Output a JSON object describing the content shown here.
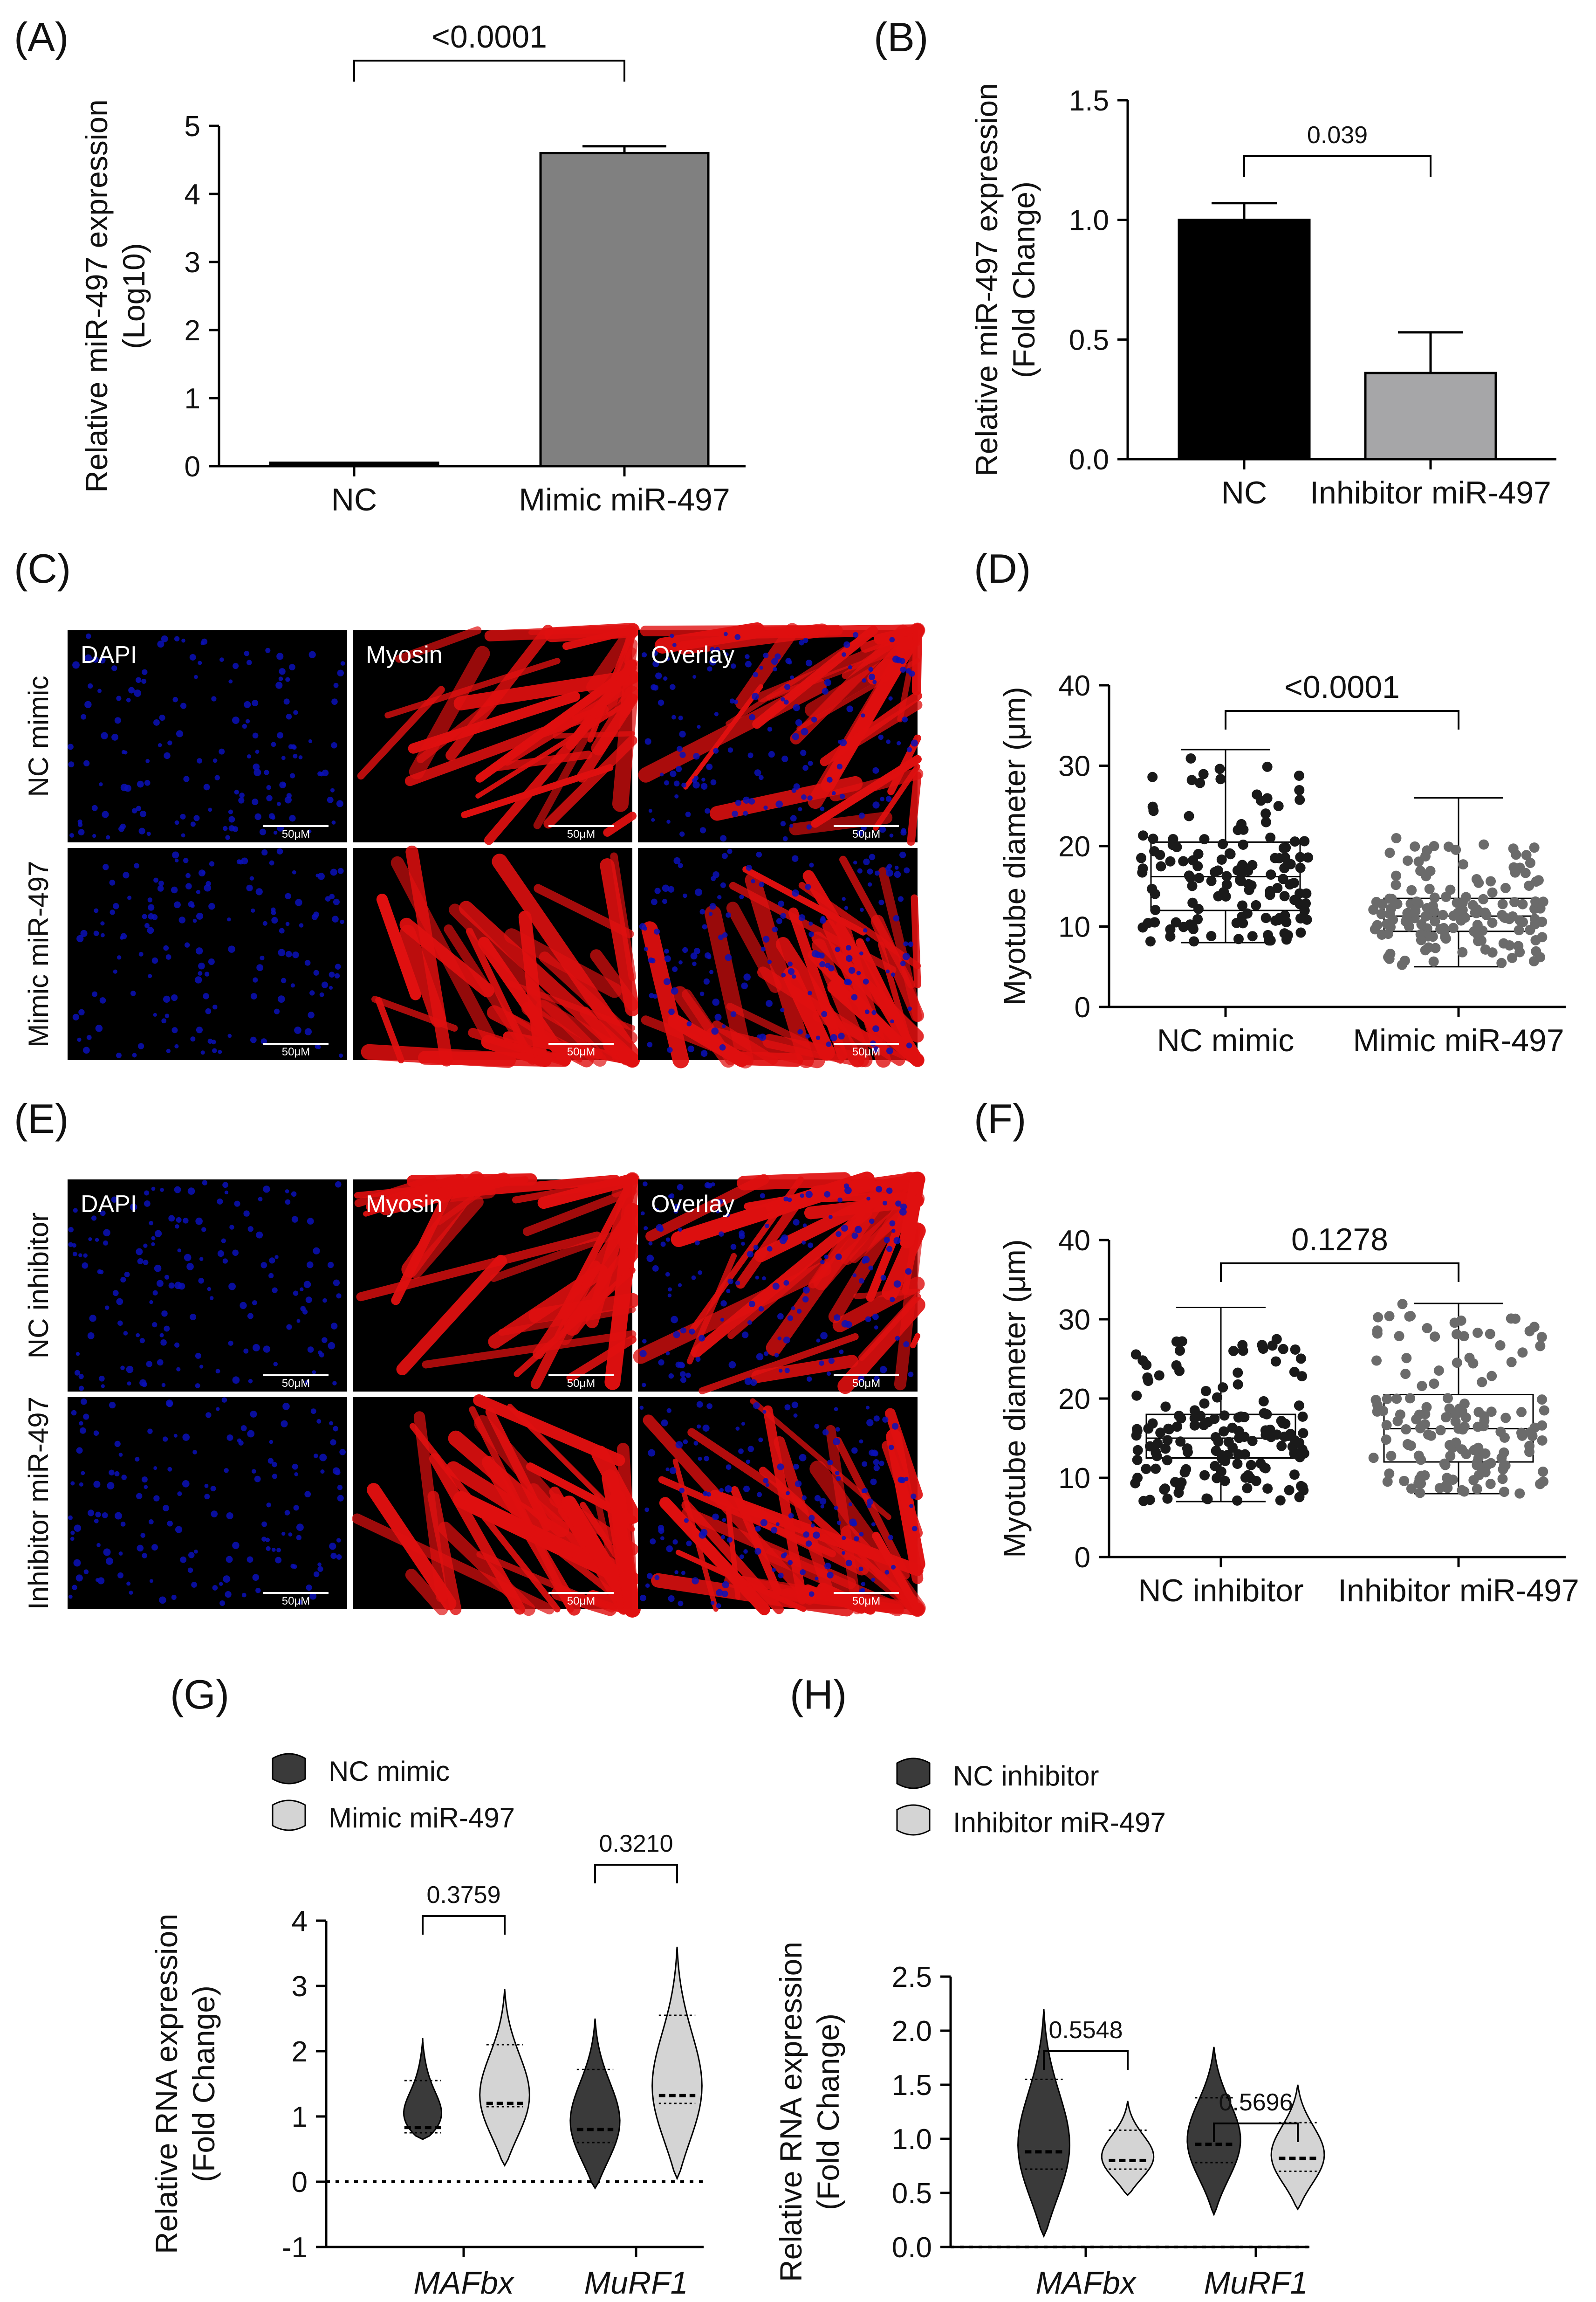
{
  "panel_labels": {
    "A": "(A)",
    "B": "(B)",
    "C": "(C)",
    "D": "(D)",
    "E": "(E)",
    "F": "(F)",
    "G": "(G)",
    "H": "(H)"
  },
  "colors": {
    "nc": "#000000",
    "nc_gray": "#222222",
    "mimic": "#808080",
    "inhibitor": "#a6a6a8",
    "dots_dark": "#1a1a1a",
    "dots_gray": "#6b6b6b",
    "violin_dark": "#3a3a3a",
    "violin_light": "#d4d4d4",
    "micro_blue": "#0a10b8",
    "micro_red": "#e01010"
  },
  "micrographs": {
    "C": {
      "rows": [
        {
          "label": "NC mimic"
        },
        {
          "label": "Mimic miR-497"
        }
      ],
      "columns": [
        {
          "label": "DAPI",
          "stain": "dapi"
        },
        {
          "label": "Myosin",
          "stain": "myosin"
        },
        {
          "label": "Overlay",
          "stain": "overlay"
        }
      ],
      "scale_label": "50μM"
    },
    "E": {
      "rows": [
        {
          "label": "NC inhibitor"
        },
        {
          "label": "Inhibitor miR-497"
        }
      ],
      "columns": [
        {
          "label": "DAPI",
          "stain": "dapi"
        },
        {
          "label": "Myosin",
          "stain": "myosin"
        },
        {
          "label": "Overlay",
          "stain": "overlay"
        }
      ],
      "scale_label": "50μM"
    }
  },
  "chart_data": [
    {
      "id": "A",
      "type": "bar",
      "categories": [
        "NC",
        "Mimic miR-497"
      ],
      "values": [
        0.05,
        4.6
      ],
      "errors": [
        0,
        0.1
      ],
      "ylabel": "Relative miR-497 expression\n(Log10)",
      "ylim": [
        0,
        5
      ],
      "yticks": [
        "0",
        "1",
        "2",
        "3",
        "4",
        "5"
      ],
      "ytick_values": [
        0,
        1,
        2,
        3,
        4,
        5
      ],
      "comparison": {
        "from": 0,
        "to": 1,
        "label": "<0.0001"
      }
    },
    {
      "id": "B",
      "type": "bar",
      "categories": [
        "NC",
        "Inhibitor miR-497"
      ],
      "values": [
        1.0,
        0.36
      ],
      "errors": [
        0.07,
        0.17
      ],
      "ylabel": "Relative miR-497 expression\n(Fold Change)",
      "ylim": [
        0,
        1.5
      ],
      "yticks": [
        "0.0",
        "0.5",
        "1.0",
        "1.5"
      ],
      "ytick_values": [
        0,
        0.5,
        1.0,
        1.5
      ],
      "comparison": {
        "from": 0,
        "to": 1,
        "label": "0.039"
      }
    },
    {
      "id": "D",
      "type": "box",
      "categories": [
        "NC mimic",
        "Mimic miR-497"
      ],
      "boxes": [
        {
          "min": 8,
          "q1": 12,
          "median": 16.2,
          "q3": 20.5,
          "max": 32,
          "n": 140,
          "spread_hi": 32,
          "spread_lo": 8
        },
        {
          "min": 5,
          "q1": 9.4,
          "median": 11.3,
          "q3": 13.5,
          "max": 26,
          "n": 150,
          "spread_hi": 21,
          "spread_lo": 5
        }
      ],
      "ylabel": "Myotube diameter (μm)",
      "ylim": [
        0,
        40
      ],
      "yticks": [
        "0",
        "10",
        "20",
        "30",
        "40"
      ],
      "ytick_values": [
        0,
        10,
        20,
        30,
        40
      ],
      "comparison": {
        "from": 0,
        "to": 1,
        "label": "<0.0001"
      }
    },
    {
      "id": "F",
      "type": "box",
      "categories": [
        "NC inhibitor",
        "Inhibitor miR-497"
      ],
      "boxes": [
        {
          "min": 7,
          "q1": 12.5,
          "median": 15,
          "q3": 18,
          "max": 31.5,
          "n": 150,
          "spread_hi": 27.5,
          "spread_lo": 7
        },
        {
          "min": 8,
          "q1": 12,
          "median": 16.2,
          "q3": 20.5,
          "max": 32,
          "n": 150,
          "spread_hi": 32,
          "spread_lo": 8
        }
      ],
      "ylabel": "Myotube diameter (μm)",
      "ylim": [
        0,
        40
      ],
      "yticks": [
        "0",
        "10",
        "20",
        "30",
        "40"
      ],
      "ytick_values": [
        0,
        10,
        20,
        30,
        40
      ],
      "comparison": {
        "from": 0,
        "to": 1,
        "label": "0.1278"
      }
    },
    {
      "id": "G",
      "type": "violin",
      "categories": [
        "MAFbx",
        "MuRF1"
      ],
      "legend": [
        "NC mimic",
        "Mimic miR-497"
      ],
      "series": [
        {
          "name": "NC mimic",
          "violins": [
            {
              "min": 0.65,
              "max": 2.2,
              "median": 0.83,
              "q1": 0.75,
              "q3": 1.55,
              "mode": 0.85
            },
            {
              "min": -0.1,
              "max": 2.5,
              "median": 0.8,
              "q1": 0.6,
              "q3": 1.72,
              "mode": 0.8
            }
          ]
        },
        {
          "name": "Mimic miR-497",
          "violins": [
            {
              "min": 0.25,
              "max": 2.95,
              "median": 1.2,
              "q1": 1.15,
              "q3": 2.1,
              "mode": 1.2
            },
            {
              "min": 0.05,
              "max": 3.6,
              "median": 1.32,
              "q1": 1.2,
              "q3": 2.55,
              "mode": 1.3
            }
          ]
        }
      ],
      "pvalues": [
        "0.3759",
        "0.3210"
      ],
      "ylabel": "Relative RNA expression\n(Fold Change)",
      "ylim": [
        -1,
        4
      ],
      "yticks": [
        "-1",
        "0",
        "1",
        "2",
        "3",
        "4"
      ],
      "ytick_values": [
        -1,
        0,
        1,
        2,
        3,
        4
      ],
      "reference_line": 0
    },
    {
      "id": "H",
      "type": "violin",
      "categories": [
        "MAFbx",
        "MuRF1"
      ],
      "legend": [
        "NC inhibitor",
        "Inhibitor miR-497"
      ],
      "series": [
        {
          "name": "NC inhibitor",
          "violins": [
            {
              "min": 0.1,
              "max": 2.2,
              "median": 0.88,
              "q1": 0.72,
              "q3": 1.55,
              "mode": 0.85
            },
            {
              "min": 0.3,
              "max": 1.85,
              "median": 0.95,
              "q1": 0.78,
              "q3": 1.38,
              "mode": 0.95
            }
          ]
        },
        {
          "name": "Inhibitor miR-497",
          "violins": [
            {
              "min": 0.48,
              "max": 1.35,
              "median": 0.8,
              "q1": 0.72,
              "q3": 1.08,
              "mode": 0.8
            },
            {
              "min": 0.35,
              "max": 1.5,
              "median": 0.82,
              "q1": 0.7,
              "q3": 1.15,
              "mode": 0.82
            }
          ]
        }
      ],
      "pvalues": [
        "0.5548",
        "0.5696"
      ],
      "ylabel": "Relative RNA expression\n(Fold Change)",
      "ylim": [
        0,
        2.5
      ],
      "yticks": [
        "0.0",
        "0.5",
        "1.0",
        "1.5",
        "2.0",
        "2.5"
      ],
      "ytick_values": [
        0,
        0.5,
        1.0,
        1.5,
        2.0,
        2.5
      ],
      "reference_line": 0
    }
  ]
}
